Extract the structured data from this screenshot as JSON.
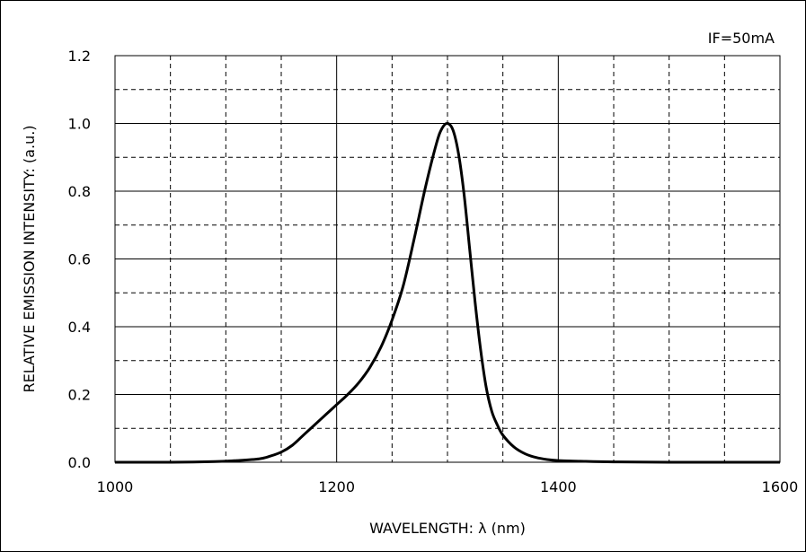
{
  "chart_data": {
    "type": "line",
    "xlabel": "WAVELENGTH: λ (nm)",
    "ylabel": "RELATIVE EMISSION INTENSITY: (a.u.)",
    "annotation": "IF=50mA",
    "xlim": [
      1000,
      1600
    ],
    "ylim": [
      0.0,
      1.2
    ],
    "x_ticks": [
      "1000",
      "1200",
      "1400",
      "1600"
    ],
    "y_ticks": [
      "0.0",
      "0.2",
      "0.4",
      "0.6",
      "0.8",
      "1.0",
      "1.2"
    ],
    "x_tick_values": [
      1000,
      1200,
      1400,
      1600
    ],
    "y_tick_values": [
      0.0,
      0.2,
      0.4,
      0.6,
      0.8,
      1.0,
      1.2
    ],
    "grid": {
      "major_solid_x": [
        1200,
        1400
      ],
      "minor_dashed_x": [
        1050,
        1100,
        1150,
        1250,
        1300,
        1350,
        1450,
        1500,
        1550
      ],
      "major_solid_y": [
        0.2,
        0.4,
        0.6,
        0.8,
        1.0
      ],
      "minor_dashed_y": [
        0.1,
        0.3,
        0.5,
        0.7,
        0.9,
        1.1
      ]
    },
    "series": [
      {
        "color": "#000000",
        "x": [
          1000,
          1050,
          1090,
          1110,
          1130,
          1140,
          1150,
          1160,
          1170,
          1180,
          1190,
          1200,
          1210,
          1220,
          1230,
          1240,
          1250,
          1260,
          1270,
          1280,
          1290,
          1295,
          1300,
          1305,
          1310,
          1315,
          1320,
          1325,
          1330,
          1335,
          1340,
          1345,
          1350,
          1360,
          1370,
          1380,
          1390,
          1400,
          1420,
          1450,
          1500,
          1600
        ],
        "y": [
          0.0,
          0.0,
          0.002,
          0.005,
          0.01,
          0.018,
          0.03,
          0.05,
          0.08,
          0.11,
          0.14,
          0.17,
          0.2,
          0.235,
          0.28,
          0.34,
          0.42,
          0.52,
          0.66,
          0.81,
          0.94,
          0.985,
          1.0,
          0.98,
          0.91,
          0.79,
          0.63,
          0.47,
          0.33,
          0.22,
          0.15,
          0.11,
          0.08,
          0.045,
          0.025,
          0.014,
          0.008,
          0.005,
          0.003,
          0.001,
          0.0,
          0.0
        ]
      }
    ]
  }
}
